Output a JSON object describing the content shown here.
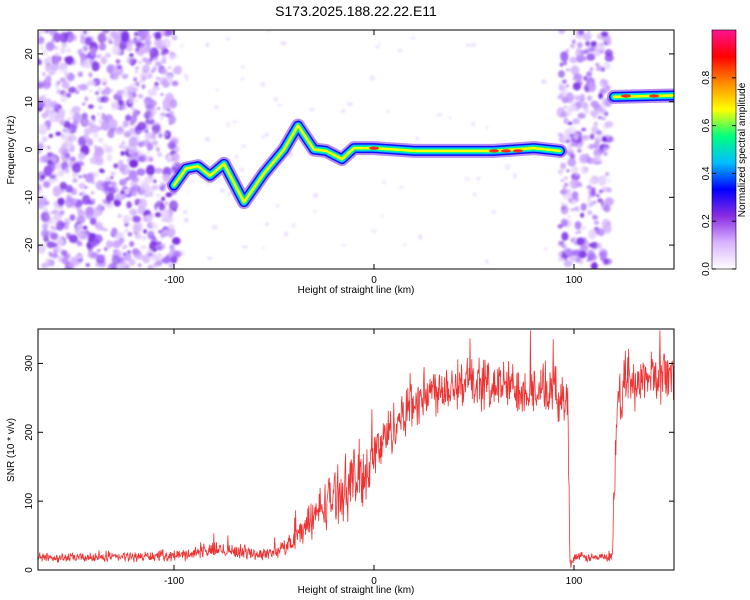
{
  "title": "S173.2025.188.22.22.E11",
  "chart_data": [
    {
      "type": "heatmap",
      "xlabel": "Height of straight line (km)",
      "ylabel": "Frequency (Hz)",
      "xlim": [
        -168,
        150
      ],
      "ylim": [
        -25,
        25
      ],
      "xticks": [
        -100,
        0,
        100
      ],
      "yticks": [
        -20,
        -10,
        0,
        10,
        20
      ],
      "colorbar": {
        "label": "Normalized spectral amplitude",
        "range": [
          0,
          1
        ],
        "ticks": [
          0.0,
          0.2,
          0.4,
          0.6,
          0.8
        ],
        "colors": [
          "#ffffff",
          "#d9b3ff",
          "#8a2be2",
          "#0000ff",
          "#00bfff",
          "#00ff7f",
          "#ffff00",
          "#ff8c00",
          "#ff0000",
          "#ff1493"
        ]
      },
      "ridge": [
        {
          "x": -100,
          "y": -7.5
        },
        {
          "x": -94,
          "y": -4
        },
        {
          "x": -88,
          "y": -3.5
        },
        {
          "x": -82,
          "y": -5.5
        },
        {
          "x": -75,
          "y": -3
        },
        {
          "x": -65,
          "y": -11
        },
        {
          "x": -55,
          "y": -5
        },
        {
          "x": -45,
          "y": 0
        },
        {
          "x": -38,
          "y": 5
        },
        {
          "x": -30,
          "y": 0
        },
        {
          "x": -24,
          "y": -0.3
        },
        {
          "x": -16,
          "y": -2
        },
        {
          "x": -10,
          "y": 0.3
        },
        {
          "x": 0,
          "y": 0.3
        },
        {
          "x": 20,
          "y": -0.3
        },
        {
          "x": 60,
          "y": -0.3
        },
        {
          "x": 80,
          "y": 0.3
        },
        {
          "x": 93,
          "y": -0.3
        },
        {
          "x": 120,
          "y": 11
        },
        {
          "x": 150,
          "y": 11.3
        }
      ],
      "noise_regions": [
        {
          "x": [
            -168,
            -98
          ],
          "y": [
            -25,
            25
          ]
        },
        {
          "x": [
            93,
            118
          ],
          "y": [
            -25,
            25
          ]
        }
      ]
    },
    {
      "type": "line",
      "xlabel": "Height of straight line (km)",
      "ylabel": "SNR (10 * v/v)",
      "xlim": [
        -168,
        150
      ],
      "ylim": [
        0,
        350
      ],
      "xticks": [
        -100,
        0,
        100
      ],
      "yticks": [
        0,
        100,
        200,
        300
      ],
      "color": "#ee3333",
      "series": [
        {
          "x": [
            -168,
            -140,
            -110,
            -95,
            -85,
            -75,
            -65,
            -55,
            -45,
            -35,
            -25,
            -15,
            -5,
            5,
            15,
            25,
            35,
            50,
            65,
            80,
            90,
            97,
            98,
            100,
            105,
            110,
            119,
            122,
            125,
            130,
            140,
            150
          ],
          "y": [
            18,
            18,
            20,
            22,
            28,
            30,
            26,
            22,
            32,
            60,
            95,
            120,
            140,
            190,
            230,
            255,
            268,
            270,
            268,
            262,
            258,
            245,
            5,
            20,
            18,
            18,
            18,
            240,
            268,
            272,
            282,
            280
          ]
        }
      ]
    }
  ]
}
